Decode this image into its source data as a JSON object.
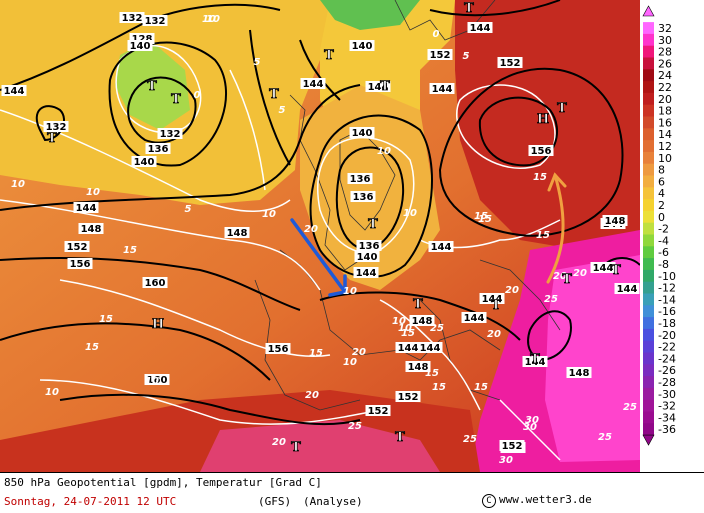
{
  "footer": {
    "title": "850 hPa Geopotential [gpdm], Temperatur [Grad C]",
    "date": "Sonntag, 24-07-2011  12 UTC",
    "model": "(GFS)",
    "kind": "(Analyse)",
    "copyright_symbol": "C",
    "site": "www.wetter3.de"
  },
  "legend": {
    "labels": [
      "32",
      "30",
      "28",
      "26",
      "24",
      "22",
      "20",
      "18",
      "16",
      "14",
      "12",
      "10",
      "8",
      "6",
      "4",
      "2",
      "0",
      "-2",
      "-4",
      "-6",
      "-8",
      "-10",
      "-12",
      "-14",
      "-16",
      "-18",
      "-20",
      "-22",
      "-24",
      "-26",
      "-28",
      "-30",
      "-32",
      "-34",
      "-36"
    ],
    "colors": [
      "#ff66ff",
      "#ff33cc",
      "#f0157a",
      "#c8103c",
      "#a00a14",
      "#b01414",
      "#c01e1e",
      "#cc3323",
      "#d24a2a",
      "#dc5f2d",
      "#e26f33",
      "#e8813a",
      "#ee9a40",
      "#f2ae40",
      "#f5c33a",
      "#f5d230",
      "#ece038",
      "#c0e040",
      "#90d83c",
      "#60cc40",
      "#40bb50",
      "#30a868",
      "#34a090",
      "#3aa0b8",
      "#4090d8",
      "#4070e0",
      "#4a50e0",
      "#5a40d8",
      "#6a34cc",
      "#7a2cc0",
      "#8a24b0",
      "#9a1ca0",
      "#a01498",
      "#9a0c90",
      "#900888"
    ]
  },
  "map": {
    "heights": [
      "132",
      "128",
      "132",
      "144",
      "144",
      "136",
      "132",
      "140",
      "136",
      "140",
      "144",
      "144",
      "144",
      "148",
      "152",
      "156",
      "148",
      "156",
      "152",
      "160",
      "156",
      "144",
      "144",
      "136",
      "136",
      "140",
      "140",
      "144",
      "144",
      "140",
      "144",
      "148",
      "152",
      "160",
      "152",
      "152",
      "148",
      "144",
      "144",
      "144",
      "152",
      "144",
      "148",
      "132",
      "144",
      "152",
      "148",
      "144"
    ],
    "temps": [
      "5",
      "5",
      "10",
      "10",
      "0",
      "5",
      "0",
      "5",
      "10",
      "10",
      "15",
      "10",
      "15",
      "10",
      "20",
      "10",
      "15",
      "15",
      "10",
      "15",
      "10",
      "10",
      "15",
      "20",
      "20",
      "25",
      "25",
      "20",
      "30",
      "15",
      "20",
      "25",
      "15",
      "20",
      "25",
      "15",
      "10",
      "10",
      "15",
      "10",
      "15",
      "20",
      "15",
      "20",
      "25",
      "30",
      "30",
      "25"
    ],
    "pressure_centers": [
      "T",
      "T",
      "T",
      "T",
      "T",
      "T",
      "T",
      "T",
      "T",
      "H",
      "H",
      "T",
      "T",
      "T",
      "T",
      "T",
      "T",
      "T"
    ]
  }
}
